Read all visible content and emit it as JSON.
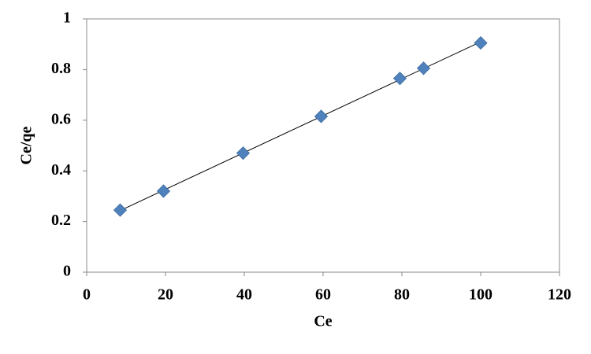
{
  "chart_data": {
    "type": "scatter",
    "xlabel": "Ce",
    "ylabel": "Ce/qe",
    "x": [
      8.5,
      19.5,
      39.7,
      59.5,
      79.5,
      85.5,
      100
    ],
    "series": [
      {
        "color": "#4f81bd",
        "values": [
          0.245,
          0.32,
          0.47,
          0.615,
          0.765,
          0.805,
          0.905
        ]
      }
    ],
    "trendline": "linear",
    "xlim": [
      0,
      120
    ],
    "xticks": [
      0,
      20,
      40,
      60,
      80,
      100,
      120
    ],
    "ylim": [
      0,
      1
    ],
    "yticks": [
      0,
      0.2,
      0.4,
      0.6,
      0.8,
      1
    ],
    "grid": false
  }
}
